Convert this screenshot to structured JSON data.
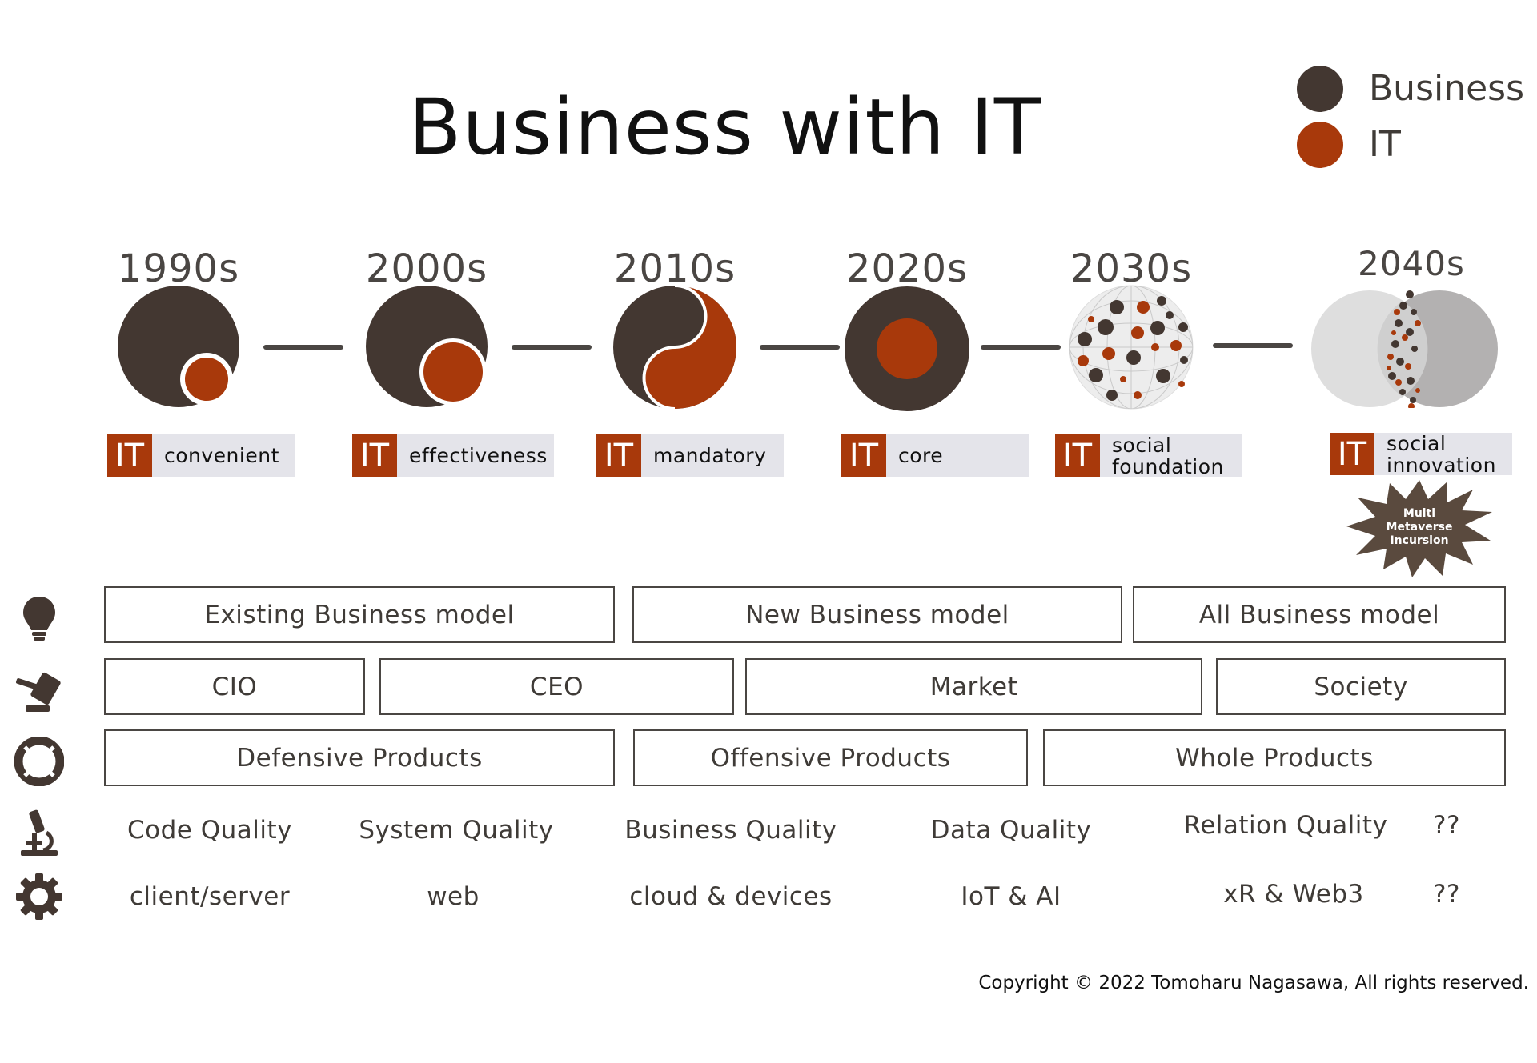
{
  "title": "Business with IT",
  "legend": [
    {
      "label": "Business",
      "color": "#433731"
    },
    {
      "label": "IT",
      "color": "#a8390b"
    }
  ],
  "colors": {
    "business": "#433731",
    "it": "#a8390b",
    "label_bg": "#e4e4ea",
    "globe_bg": "#e9e9e9"
  },
  "timeline": [
    {
      "decade": "1990s",
      "tag": "IT",
      "label_lines": [
        "convenient"
      ],
      "icon": "small-it-circle-icon"
    },
    {
      "decade": "2000s",
      "tag": "IT",
      "label_lines": [
        "effectiveness"
      ],
      "icon": "larger-it-circle-icon"
    },
    {
      "decade": "2010s",
      "tag": "IT",
      "label_lines": [
        "mandatory"
      ],
      "icon": "yin-yang-icon"
    },
    {
      "decade": "2020s",
      "tag": "IT",
      "label_lines": [
        "core"
      ],
      "icon": "it-core-icon"
    },
    {
      "decade": "2030s",
      "tag": "IT",
      "label_lines": [
        "social",
        "foundation"
      ],
      "icon": "dotted-globe-icon"
    },
    {
      "decade": "2040s",
      "tag": "IT",
      "label_lines": [
        "social",
        "innovation"
      ],
      "icon": "merging-spheres-icon"
    }
  ],
  "starburst": [
    "Multi",
    "Metaverse",
    "Incursion"
  ],
  "rows": {
    "model": [
      "Existing Business model",
      "New Business model",
      "All Business model"
    ],
    "decision": [
      "CIO",
      "CEO",
      "Market",
      "Society"
    ],
    "products": [
      "Defensive Products",
      "Offensive Products",
      "Whole Products"
    ],
    "quality": [
      "Code Quality",
      "System Quality",
      "Business Quality",
      "Data Quality",
      "Relation Quality",
      "??"
    ],
    "tech": [
      "client/server",
      "web",
      "cloud & devices",
      "IoT & AI",
      "xR & Web3",
      "??"
    ]
  },
  "side_icons": [
    "lightbulb-icon",
    "gavel-icon",
    "lifebuoy-icon",
    "microscope-icon",
    "gear-icon"
  ],
  "copyright": "Copyright © 2022 Tomoharu Nagasawa, All rights reserved."
}
